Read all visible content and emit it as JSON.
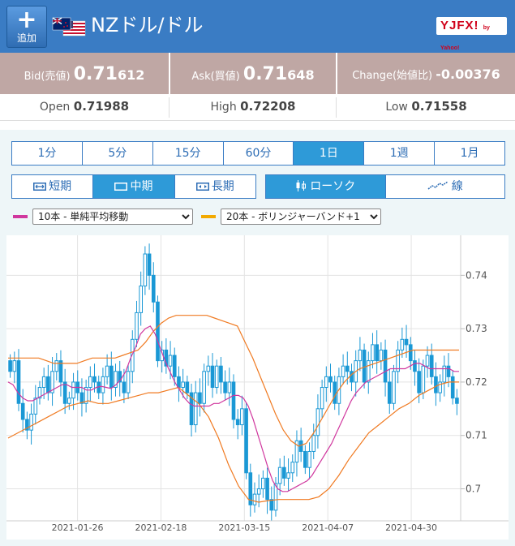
{
  "header": {
    "add_label": "追加",
    "title": "NZドル/ドル",
    "logo_text": "YJFX!",
    "logo_sub": "by Yahoo!",
    "colors": {
      "bar": "#3a7cc4"
    }
  },
  "quotes": {
    "bid": {
      "label": "Bid(売値)",
      "prefix": "0.71",
      "suffix": "612"
    },
    "ask": {
      "label": "Ask(買値)",
      "prefix": "0.71",
      "suffix": "648"
    },
    "change": {
      "label": "Change(始値比)",
      "value": "-0.00376"
    }
  },
  "ohlc": {
    "open": {
      "label": "Open",
      "value": "0.71988"
    },
    "high": {
      "label": "High",
      "value": "0.72208"
    },
    "low": {
      "label": "Low",
      "value": "0.71558"
    }
  },
  "periods": [
    "1分",
    "5分",
    "15分",
    "60分",
    "1日",
    "1週",
    "1月"
  ],
  "period_active": 4,
  "terms": [
    "短期",
    "中期",
    "長期"
  ],
  "term_active": 1,
  "chart_types": [
    "ローソク",
    "線"
  ],
  "chart_type_active": 0,
  "indicators": {
    "ma": {
      "selected": "10本 - 単純平均移動",
      "color": "#d0379e"
    },
    "bb": {
      "selected": "20本 - ボリンジャーバンド+1",
      "color": "#f2a900"
    }
  },
  "chart_data": {
    "type": "candlestick",
    "x_ticks": [
      "2021-01-26",
      "2021-02-18",
      "2021-03-15",
      "2021-04-07",
      "2021-04-30"
    ],
    "y_ticks": [
      "0.74",
      "0.73",
      "0.72",
      "0.71",
      "0.7"
    ],
    "ylim": [
      0.694,
      0.7475
    ],
    "grid": true,
    "colors": {
      "candle": "#1a98d5",
      "ma": "#d0379e",
      "bb": "#f07a21"
    },
    "closes": [
      0.722,
      0.724,
      0.716,
      0.713,
      0.711,
      0.714,
      0.717,
      0.719,
      0.721,
      0.718,
      0.722,
      0.724,
      0.72,
      0.716,
      0.717,
      0.72,
      0.718,
      0.716,
      0.719,
      0.721,
      0.72,
      0.718,
      0.721,
      0.723,
      0.719,
      0.722,
      0.72,
      0.718,
      0.722,
      0.728,
      0.733,
      0.738,
      0.744,
      0.74,
      0.735,
      0.724,
      0.726,
      0.723,
      0.725,
      0.721,
      0.719,
      0.72,
      0.718,
      0.712,
      0.718,
      0.716,
      0.722,
      0.723,
      0.719,
      0.723,
      0.72,
      0.718,
      0.72,
      0.713,
      0.712,
      0.715,
      0.703,
      0.697,
      0.699,
      0.7,
      0.702,
      0.698,
      0.696,
      0.701,
      0.704,
      0.702,
      0.703,
      0.705,
      0.709,
      0.707,
      0.704,
      0.707,
      0.71,
      0.715,
      0.719,
      0.721,
      0.72,
      0.716,
      0.721,
      0.723,
      0.722,
      0.72,
      0.724,
      0.726,
      0.72,
      0.724,
      0.727,
      0.724,
      0.726,
      0.72,
      0.716,
      0.722,
      0.726,
      0.728,
      0.727,
      0.724,
      0.722,
      0.718,
      0.723,
      0.725,
      0.721,
      0.718,
      0.72,
      0.723,
      0.721,
      0.717,
      0.716
    ],
    "ma": [
      0.72,
      0.7195,
      0.718,
      0.717,
      0.7165,
      0.7165,
      0.717,
      0.7175,
      0.718,
      0.7185,
      0.719,
      0.7195,
      0.7195,
      0.719,
      0.719,
      0.719,
      0.7185,
      0.7185,
      0.719,
      0.7192,
      0.719,
      0.7188,
      0.7195,
      0.7205,
      0.722,
      0.7245,
      0.7265,
      0.729,
      0.73,
      0.7305,
      0.729,
      0.7265,
      0.724,
      0.722,
      0.72,
      0.7185,
      0.717,
      0.716,
      0.7155,
      0.7155,
      0.7155,
      0.7155,
      0.716,
      0.716,
      0.7165,
      0.717,
      0.7175,
      0.7175,
      0.717,
      0.7155,
      0.713,
      0.71,
      0.707,
      0.704,
      0.7015,
      0.7,
      0.6995,
      0.6995,
      0.7,
      0.7005,
      0.701,
      0.7015,
      0.7025,
      0.704,
      0.7055,
      0.707,
      0.7085,
      0.7105,
      0.7125,
      0.7145,
      0.7165,
      0.718,
      0.719,
      0.72,
      0.7205,
      0.721,
      0.7215,
      0.722,
      0.7225,
      0.7225,
      0.7225,
      0.7225,
      0.723,
      0.7235,
      0.7235,
      0.723,
      0.7225,
      0.7225,
      0.7225,
      0.7225,
      0.7225,
      0.722,
      0.722
    ],
    "bb_upper": [
      0.7245,
      0.7245,
      0.7245,
      0.7245,
      0.7245,
      0.724,
      0.7235,
      0.7235,
      0.7235,
      0.7235,
      0.724,
      0.7245,
      0.7245,
      0.7245,
      0.7245,
      0.725,
      0.7255,
      0.726,
      0.7275,
      0.7295,
      0.731,
      0.732,
      0.7325,
      0.7325,
      0.7325,
      0.7325,
      0.7325,
      0.732,
      0.7315,
      0.731,
      0.7305,
      0.7275,
      0.7245,
      0.721,
      0.7175,
      0.714,
      0.711,
      0.709,
      0.708,
      0.7085,
      0.7105,
      0.713,
      0.7155,
      0.718,
      0.72,
      0.7215,
      0.7225,
      0.723,
      0.7235,
      0.724,
      0.7245,
      0.725,
      0.7255,
      0.726,
      0.726,
      0.726,
      0.726,
      0.726,
      0.726,
      0.726
    ],
    "bb_lower": [
      0.7095,
      0.7105,
      0.7115,
      0.7125,
      0.7135,
      0.7145,
      0.7155,
      0.716,
      0.7165,
      0.716,
      0.716,
      0.7165,
      0.717,
      0.7175,
      0.718,
      0.718,
      0.7185,
      0.719,
      0.7175,
      0.716,
      0.7135,
      0.7095,
      0.7045,
      0.7005,
      0.698,
      0.6975,
      0.6978,
      0.698,
      0.698,
      0.698,
      0.698,
      0.6985,
      0.7,
      0.7025,
      0.7055,
      0.708,
      0.7105,
      0.712,
      0.7135,
      0.715,
      0.716,
      0.7175,
      0.7185,
      0.7195,
      0.72,
      0.72
    ]
  }
}
